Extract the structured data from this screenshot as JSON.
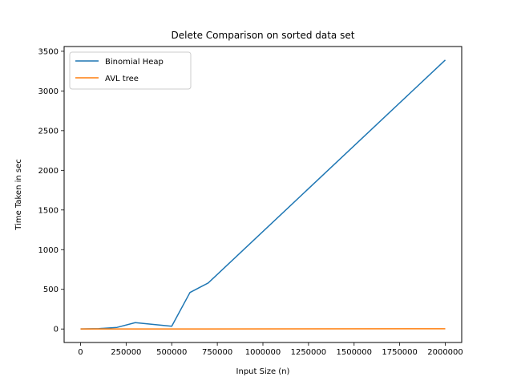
{
  "chart_data": {
    "type": "line",
    "title": "Delete Comparison on sorted data set",
    "xlabel": "Input Size (n)",
    "ylabel": "Time Taken in sec",
    "xlim": [
      -90000,
      2090000
    ],
    "ylim": [
      -170,
      3560
    ],
    "xticks": [
      0,
      250000,
      500000,
      750000,
      1000000,
      1250000,
      1500000,
      1750000,
      2000000
    ],
    "xtick_labels": [
      "0",
      "250000",
      "500000",
      "750000",
      "1000000",
      "1250000",
      "1500000",
      "1750000",
      "2000000"
    ],
    "yticks": [
      0,
      500,
      1000,
      1500,
      2000,
      2500,
      3000,
      3500
    ],
    "ytick_labels": [
      "0",
      "500",
      "1000",
      "1500",
      "2000",
      "2500",
      "3000",
      "3500"
    ],
    "grid": false,
    "legend_position": "upper-left",
    "series": [
      {
        "name": "Binomial Heap",
        "color": "#1f77b4",
        "x": [
          0,
          100000,
          200000,
          300000,
          500000,
          600000,
          700000,
          2000000
        ],
        "y": [
          0,
          5,
          20,
          80,
          35,
          460,
          580,
          3390
        ]
      },
      {
        "name": "AVL tree",
        "color": "#ff7f0e",
        "x": [
          0,
          100000,
          200000,
          300000,
          500000,
          600000,
          700000,
          2000000
        ],
        "y": [
          0,
          0,
          0,
          0,
          0,
          0,
          1,
          3
        ]
      }
    ]
  }
}
